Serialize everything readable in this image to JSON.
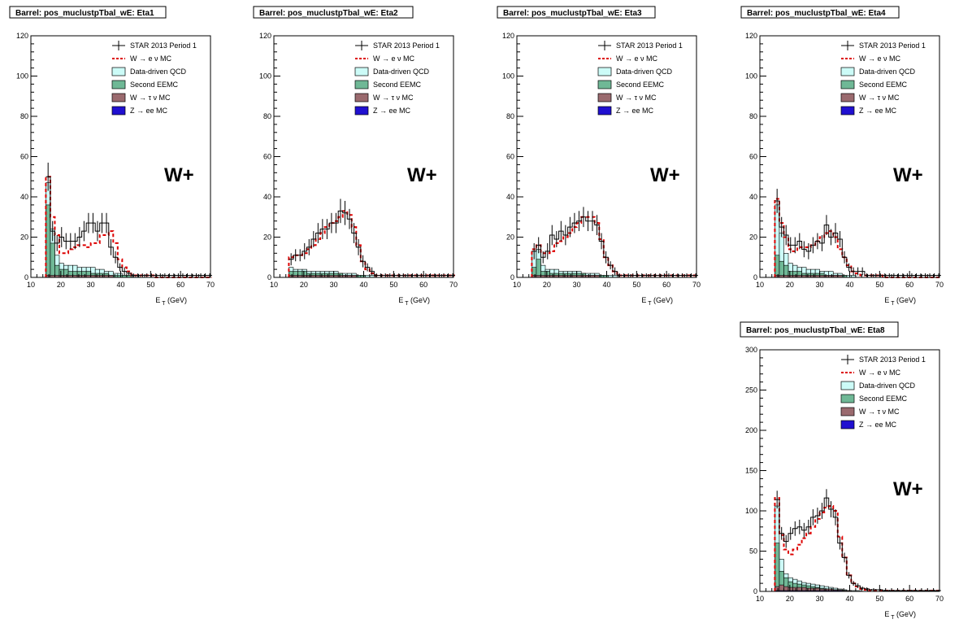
{
  "legend_entries": [
    {
      "label": "STAR 2013 Period 1",
      "kind": "data",
      "color": "#000000"
    },
    {
      "label": "W  → e  ν MC",
      "kind": "dashed",
      "color": "#dd0000"
    },
    {
      "label": "Data-driven QCD",
      "kind": "box",
      "color": "#ccfbf7"
    },
    {
      "label": "Second EEMC",
      "kind": "box",
      "color": "#6fb896"
    },
    {
      "label": "W  → τ  ν MC",
      "kind": "box",
      "color": "#9a6a6e"
    },
    {
      "label": "Z  → ee MC",
      "kind": "box",
      "color": "#2010d0"
    }
  ],
  "chart_data": [
    {
      "type": "bar",
      "title": "Barrel: pos_muclustpTbal_wE: Eta1",
      "annotation": "W+",
      "xlabel_main": "E",
      "xlabel_sub": "T",
      "xlabel_unit": "(GeV)",
      "xlim": [
        10,
        70
      ],
      "ylim": [
        0,
        120
      ],
      "xticks": [
        10,
        20,
        30,
        40,
        50,
        60,
        70
      ],
      "yticks": [
        0,
        20,
        40,
        60,
        80,
        100,
        120
      ],
      "bin_edges_start": 15,
      "bin_width": 1.5,
      "data": [
        50,
        23,
        17,
        20,
        18,
        18,
        18,
        20,
        23,
        27,
        27,
        23,
        27,
        27,
        15,
        10,
        5,
        3,
        2,
        1,
        1,
        1,
        1,
        1,
        1,
        1,
        1,
        1,
        1,
        1,
        1,
        1,
        1,
        1,
        1,
        1,
        1
      ],
      "data_err": [
        7,
        5,
        4,
        5,
        4,
        4,
        4,
        5,
        5,
        5,
        5,
        5,
        5,
        5,
        4,
        3,
        2,
        2,
        1,
        1,
        1,
        1,
        1,
        1,
        1,
        1,
        1,
        1,
        1,
        1,
        1,
        1,
        1,
        1,
        1,
        1,
        1
      ],
      "w_enu": [
        50,
        30,
        21,
        12,
        12,
        14,
        15,
        16,
        16,
        15,
        17,
        17,
        21,
        21,
        23,
        17,
        9,
        5,
        3,
        1,
        1,
        1,
        1,
        1,
        0,
        0,
        0,
        0,
        0,
        0,
        0,
        0,
        0,
        0,
        0,
        0,
        0
      ],
      "qcd": [
        47,
        24,
        11,
        7,
        6,
        6,
        6,
        5,
        5,
        5,
        5,
        4,
        4,
        3,
        3,
        2,
        2,
        1,
        1,
        1,
        1,
        0,
        0,
        0,
        0,
        0,
        0,
        0,
        0,
        0,
        0,
        0,
        0,
        0,
        0,
        0,
        0
      ],
      "eemc": [
        36,
        17,
        6,
        4,
        4,
        3,
        3,
        3,
        3,
        3,
        2,
        2,
        2,
        2,
        1,
        1,
        1,
        1,
        1,
        0,
        0,
        0,
        0,
        0,
        0,
        0,
        0,
        0,
        0,
        0,
        0,
        0,
        0,
        0,
        0,
        0,
        0
      ],
      "w_tau": [
        1,
        1,
        1,
        1,
        1,
        1,
        1,
        1,
        1,
        1,
        1,
        1,
        1,
        1,
        1,
        0,
        0,
        0,
        0,
        0,
        0,
        0,
        0,
        0,
        0,
        0,
        0,
        0,
        0,
        0,
        0,
        0,
        0,
        0,
        0,
        0,
        0
      ],
      "z_ee": [
        0,
        0,
        0,
        0,
        0,
        0,
        0,
        0,
        0,
        0,
        0,
        0,
        0,
        0,
        0,
        0,
        0,
        0,
        0,
        0,
        0,
        0,
        0,
        0,
        0,
        0,
        0,
        0,
        0,
        0,
        0,
        0,
        0,
        0,
        0,
        0,
        0
      ]
    },
    {
      "type": "bar",
      "title": "Barrel: pos_muclustpTbal_wE: Eta2",
      "annotation": "W+",
      "xlabel_main": "E",
      "xlabel_sub": "T",
      "xlabel_unit": "(GeV)",
      "xlim": [
        10,
        70
      ],
      "ylim": [
        0,
        120
      ],
      "xticks": [
        10,
        20,
        30,
        40,
        50,
        60,
        70
      ],
      "yticks": [
        0,
        20,
        40,
        60,
        80,
        100,
        120
      ],
      "bin_edges_start": 15,
      "bin_width": 1.5,
      "data": [
        9,
        11,
        11,
        13,
        15,
        19,
        22,
        24,
        24,
        27,
        27,
        33,
        32,
        29,
        22,
        15,
        8,
        5,
        3,
        1,
        1,
        1,
        1,
        1,
        1,
        1,
        1,
        1,
        1,
        1,
        1,
        1,
        1,
        1,
        1,
        1,
        1
      ],
      "data_err": [
        3,
        3,
        3,
        4,
        4,
        4,
        5,
        5,
        5,
        5,
        5,
        6,
        6,
        5,
        5,
        4,
        3,
        2,
        2,
        1,
        1,
        1,
        1,
        1,
        1,
        1,
        1,
        1,
        1,
        1,
        1,
        1,
        1,
        1,
        1,
        1,
        1
      ],
      "w_enu": [
        10,
        11,
        11,
        12,
        14,
        16,
        19,
        22,
        25,
        27,
        28,
        30,
        33,
        31,
        25,
        16,
        8,
        4,
        2,
        1,
        1,
        1,
        1,
        1,
        1,
        1,
        1,
        1,
        1,
        1,
        1,
        1,
        1,
        1,
        1,
        1,
        1
      ],
      "qcd": [
        5,
        4,
        4,
        4,
        3,
        3,
        3,
        3,
        3,
        3,
        3,
        2,
        2,
        2,
        2,
        1,
        1,
        1,
        1,
        0,
        0,
        0,
        0,
        0,
        0,
        0,
        0,
        0,
        0,
        0,
        0,
        0,
        0,
        0,
        0,
        0,
        0
      ],
      "eemc": [
        3,
        3,
        3,
        3,
        2,
        2,
        2,
        2,
        2,
        2,
        2,
        2,
        1,
        1,
        1,
        1,
        1,
        0,
        0,
        0,
        0,
        0,
        0,
        0,
        0,
        0,
        0,
        0,
        0,
        0,
        0,
        0,
        0,
        0,
        0,
        0,
        0
      ],
      "w_tau": [
        1,
        1,
        1,
        1,
        1,
        1,
        1,
        1,
        1,
        1,
        1,
        1,
        1,
        1,
        1,
        0,
        0,
        0,
        0,
        0,
        0,
        0,
        0,
        0,
        0,
        0,
        0,
        0,
        0,
        0,
        0,
        0,
        0,
        0,
        0,
        0,
        0
      ],
      "z_ee": [
        0,
        0,
        0,
        0,
        0,
        0,
        0,
        0,
        0,
        0,
        0,
        0,
        0,
        0,
        0,
        0,
        0,
        0,
        0,
        0,
        0,
        0,
        0,
        0,
        0,
        0,
        0,
        0,
        0,
        0,
        0,
        0,
        0,
        0,
        0,
        0,
        0
      ]
    },
    {
      "type": "bar",
      "title": "Barrel: pos_muclustpTbal_wE: Eta3",
      "annotation": "W+",
      "xlabel_main": "E",
      "xlabel_sub": "T",
      "xlabel_unit": "(GeV)",
      "xlim": [
        10,
        70
      ],
      "ylim": [
        0,
        120
      ],
      "xticks": [
        10,
        20,
        30,
        40,
        50,
        60,
        70
      ],
      "yticks": [
        0,
        20,
        40,
        60,
        80,
        100,
        120
      ],
      "bin_edges_start": 15,
      "bin_width": 1.5,
      "data": [
        13,
        16,
        10,
        13,
        21,
        19,
        23,
        21,
        25,
        27,
        28,
        30,
        28,
        28,
        26,
        18,
        10,
        6,
        3,
        1,
        1,
        1,
        1,
        1,
        1,
        1,
        1,
        1,
        1,
        1,
        1,
        1,
        1,
        1,
        1,
        1,
        1
      ],
      "data_err": [
        4,
        4,
        3,
        4,
        5,
        4,
        5,
        5,
        5,
        5,
        5,
        5,
        5,
        5,
        5,
        4,
        3,
        2,
        2,
        1,
        1,
        1,
        1,
        1,
        1,
        1,
        1,
        1,
        1,
        1,
        1,
        1,
        1,
        1,
        1,
        1,
        1
      ],
      "w_enu": [
        14,
        16,
        12,
        12,
        13,
        17,
        18,
        20,
        22,
        25,
        27,
        30,
        30,
        30,
        27,
        19,
        10,
        6,
        3,
        1,
        1,
        1,
        1,
        1,
        1,
        1,
        1,
        1,
        1,
        1,
        1,
        1,
        1,
        1,
        1,
        1,
        1
      ],
      "qcd": [
        13,
        14,
        6,
        4,
        4,
        4,
        3,
        3,
        3,
        3,
        3,
        2,
        2,
        2,
        2,
        1,
        1,
        1,
        1,
        0,
        0,
        0,
        0,
        0,
        0,
        0,
        0,
        0,
        0,
        0,
        0,
        0,
        0,
        0,
        0,
        0,
        0
      ],
      "eemc": [
        5,
        9,
        3,
        3,
        2,
        2,
        2,
        2,
        2,
        2,
        2,
        2,
        1,
        1,
        1,
        1,
        1,
        0,
        0,
        0,
        0,
        0,
        0,
        0,
        0,
        0,
        0,
        0,
        0,
        0,
        0,
        0,
        0,
        0,
        0,
        0,
        0
      ],
      "w_tau": [
        1,
        1,
        1,
        1,
        1,
        1,
        1,
        1,
        1,
        1,
        1,
        1,
        1,
        1,
        1,
        0,
        0,
        0,
        0,
        0,
        0,
        0,
        0,
        0,
        0,
        0,
        0,
        0,
        0,
        0,
        0,
        0,
        0,
        0,
        0,
        0,
        0
      ],
      "z_ee": [
        0,
        0,
        0,
        0,
        0,
        0,
        0,
        0,
        0,
        0,
        0,
        0,
        0,
        0,
        0,
        0,
        0,
        0,
        0,
        0,
        0,
        0,
        0,
        0,
        0,
        0,
        0,
        0,
        0,
        0,
        0,
        0,
        0,
        0,
        0,
        0,
        0
      ]
    },
    {
      "type": "bar",
      "title": "Barrel: pos_muclustpTbal_wE: Eta4",
      "annotation": "W+",
      "xlabel_main": "E",
      "xlabel_sub": "T",
      "xlabel_unit": "(GeV)",
      "xlim": [
        10,
        70
      ],
      "ylim": [
        0,
        120
      ],
      "xticks": [
        10,
        20,
        30,
        40,
        50,
        60,
        70
      ],
      "yticks": [
        0,
        20,
        40,
        60,
        80,
        100,
        120
      ],
      "bin_edges_start": 15,
      "bin_width": 1.5,
      "data": [
        38,
        25,
        21,
        16,
        16,
        18,
        14,
        13,
        16,
        18,
        17,
        26,
        20,
        22,
        19,
        10,
        5,
        3,
        3,
        3,
        1,
        1,
        1,
        1,
        1,
        1,
        1,
        1,
        1,
        1,
        1,
        1,
        1,
        1,
        1,
        1,
        1
      ],
      "data_err": [
        6,
        5,
        5,
        4,
        4,
        4,
        4,
        4,
        4,
        4,
        4,
        5,
        4,
        5,
        4,
        3,
        2,
        2,
        2,
        2,
        1,
        1,
        1,
        1,
        1,
        1,
        1,
        1,
        1,
        1,
        1,
        1,
        1,
        1,
        1,
        1,
        1
      ],
      "w_enu": [
        39,
        27,
        20,
        14,
        13,
        15,
        15,
        15,
        16,
        18,
        20,
        22,
        23,
        20,
        14,
        10,
        6,
        3,
        2,
        1,
        1,
        1,
        1,
        1,
        0,
        0,
        0,
        0,
        0,
        0,
        0,
        0,
        0,
        0,
        0,
        0,
        0
      ],
      "qcd": [
        36,
        22,
        12,
        7,
        6,
        5,
        5,
        4,
        4,
        4,
        3,
        3,
        3,
        2,
        2,
        1,
        1,
        1,
        0,
        0,
        0,
        0,
        0,
        0,
        0,
        0,
        0,
        0,
        0,
        0,
        0,
        0,
        0,
        0,
        0,
        0,
        0
      ],
      "eemc": [
        11,
        8,
        6,
        3,
        3,
        3,
        2,
        2,
        2,
        2,
        2,
        1,
        1,
        1,
        1,
        1,
        0,
        0,
        0,
        0,
        0,
        0,
        0,
        0,
        0,
        0,
        0,
        0,
        0,
        0,
        0,
        0,
        0,
        0,
        0,
        0,
        0
      ],
      "w_tau": [
        1,
        1,
        1,
        1,
        1,
        1,
        1,
        1,
        1,
        1,
        1,
        1,
        1,
        1,
        1,
        0,
        0,
        0,
        0,
        0,
        0,
        0,
        0,
        0,
        0,
        0,
        0,
        0,
        0,
        0,
        0,
        0,
        0,
        0,
        0,
        0,
        0
      ],
      "z_ee": [
        0,
        0,
        0,
        0,
        0,
        0,
        0,
        0,
        0,
        0,
        0,
        0,
        0,
        0,
        0,
        0,
        0,
        0,
        0,
        0,
        0,
        0,
        0,
        0,
        0,
        0,
        0,
        0,
        0,
        0,
        0,
        0,
        0,
        0,
        0,
        0,
        0
      ]
    },
    {
      "type": "bar",
      "title": "Barrel: pos_muclustpTbal_wE: Eta8",
      "annotation": "W+",
      "xlabel_main": "E",
      "xlabel_sub": "T",
      "xlabel_unit": "(GeV)",
      "xlim": [
        10,
        70
      ],
      "ylim": [
        0,
        300
      ],
      "xticks": [
        10,
        20,
        30,
        40,
        50,
        60,
        70
      ],
      "yticks": [
        0,
        50,
        100,
        150,
        200,
        250,
        300
      ],
      "bin_edges_start": 15,
      "bin_width": 1.5,
      "data": [
        114,
        72,
        62,
        72,
        78,
        80,
        76,
        80,
        92,
        94,
        100,
        116,
        102,
        92,
        60,
        42,
        20,
        10,
        7,
        4,
        3,
        2,
        2,
        2,
        1,
        1,
        1,
        1,
        1,
        1,
        1,
        1,
        1,
        1,
        1,
        1,
        1
      ],
      "data_err": [
        11,
        8,
        8,
        8,
        9,
        9,
        9,
        9,
        10,
        10,
        10,
        11,
        10,
        10,
        8,
        6,
        4,
        3,
        3,
        2,
        2,
        1,
        1,
        1,
        1,
        1,
        1,
        1,
        1,
        1,
        1,
        1,
        1,
        1,
        1,
        1,
        1
      ],
      "w_enu": [
        116,
        70,
        52,
        46,
        52,
        58,
        66,
        72,
        80,
        90,
        98,
        104,
        106,
        100,
        68,
        42,
        20,
        10,
        6,
        3,
        2,
        1,
        1,
        1,
        1,
        1,
        1,
        1,
        1,
        1,
        1,
        1,
        1,
        1,
        1,
        1,
        1
      ],
      "qcd": [
        106,
        40,
        22,
        17,
        15,
        13,
        11,
        10,
        9,
        8,
        7,
        6,
        5,
        4,
        3,
        2,
        1,
        1,
        1,
        0,
        0,
        0,
        0,
        0,
        0,
        0,
        0,
        0,
        0,
        0,
        0,
        0,
        0,
        0,
        0,
        0,
        0
      ],
      "eemc": [
        60,
        25,
        17,
        12,
        10,
        9,
        8,
        7,
        6,
        5,
        4,
        3,
        3,
        2,
        1,
        1,
        1,
        0,
        0,
        0,
        0,
        0,
        0,
        0,
        0,
        0,
        0,
        0,
        0,
        0,
        0,
        0,
        0,
        0,
        0,
        0,
        0
      ],
      "w_tau": [
        6,
        8,
        6,
        5,
        5,
        5,
        5,
        4,
        4,
        4,
        3,
        3,
        3,
        2,
        2,
        1,
        1,
        0,
        0,
        0,
        0,
        0,
        0,
        0,
        0,
        0,
        0,
        0,
        0,
        0,
        0,
        0,
        0,
        0,
        0,
        0,
        0
      ],
      "z_ee": [
        1,
        1,
        1,
        1,
        1,
        1,
        1,
        1,
        1,
        1,
        1,
        1,
        1,
        1,
        1,
        0,
        0,
        0,
        0,
        0,
        0,
        0,
        0,
        0,
        0,
        0,
        0,
        0,
        0,
        0,
        0,
        0,
        0,
        0,
        0,
        0,
        0
      ]
    }
  ]
}
